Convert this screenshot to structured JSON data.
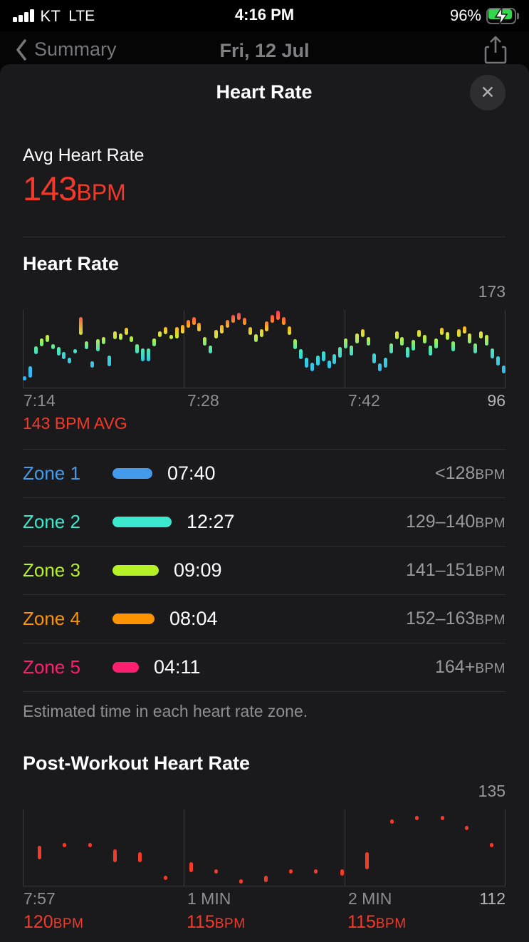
{
  "status_bar": {
    "carrier": "KT",
    "network": "LTE",
    "time": "4:16 PM",
    "battery_percent": "96%"
  },
  "background_page": {
    "back_label": "Summary",
    "date_title": "Fri, 12 Jul"
  },
  "sheet": {
    "title": "Heart Rate",
    "close_label": "✕",
    "avg": {
      "label": "Avg Heart Rate",
      "value": "143",
      "unit": "BPM"
    }
  },
  "hr_section": {
    "heading": "Heart Rate",
    "avg_caption": "143 BPM AVG"
  },
  "zones": {
    "rows": [
      {
        "name": "Zone 1",
        "color": "#449BEC",
        "duration": "07:40",
        "range_value": "<128",
        "range_unit": "BPM"
      },
      {
        "name": "Zone 2",
        "color": "#3CE8CD",
        "duration": "12:27",
        "range_value": "129–140",
        "range_unit": "BPM"
      },
      {
        "name": "Zone 3",
        "color": "#B5F125",
        "duration": "09:09",
        "range_value": "141–151",
        "range_unit": "BPM"
      },
      {
        "name": "Zone 4",
        "color": "#FB9303",
        "duration": "08:04",
        "range_value": "152–163",
        "range_unit": "BPM"
      },
      {
        "name": "Zone 5",
        "color": "#FC1E6F",
        "duration": "04:11",
        "range_value": "164+",
        "range_unit": "BPM"
      }
    ],
    "caption": "Estimated time in each heart rate zone."
  },
  "post_section": {
    "heading": "Post-Workout Heart Rate"
  },
  "chart_data": [
    {
      "type": "bar",
      "title": "Heart Rate",
      "ylabel": "BPM",
      "ylim": [
        96,
        173
      ],
      "y_max_label": "173",
      "y_min_label": "96",
      "x_ticks": [
        "7:14",
        "7:28",
        "7:42"
      ],
      "avg_bpm": 143,
      "legend": "segments are [low,high] BPM per ~30s interval, colored by heart-rate zone",
      "gradient_stops": [
        [
          96,
          "#38A1F4"
        ],
        [
          122,
          "#36CBE8"
        ],
        [
          133,
          "#3BE8C4"
        ],
        [
          145,
          "#BFF034"
        ],
        [
          151,
          "#EDE23C"
        ],
        [
          158,
          "#FFA018"
        ],
        [
          166,
          "#FF5A3C"
        ],
        [
          173,
          "#FF2D6B"
        ]
      ],
      "segments": [
        [
          103,
          107
        ],
        [
          106,
          117
        ],
        [
          129,
          137
        ],
        [
          137,
          145
        ],
        [
          141,
          148
        ],
        [
          134,
          139
        ],
        [
          128,
          136
        ],
        [
          124,
          131
        ],
        [
          120,
          126
        ],
        [
          130,
          134
        ],
        [
          148,
          166
        ],
        [
          134,
          142
        ],
        [
          116,
          122
        ],
        [
          132,
          144
        ],
        [
          139,
          146
        ],
        [
          117,
          128
        ],
        [
          144,
          152
        ],
        [
          143,
          150
        ],
        [
          148,
          155
        ],
        [
          141,
          147
        ],
        [
          130,
          139
        ],
        [
          122,
          135
        ],
        [
          122,
          135
        ],
        [
          137,
          145
        ],
        [
          146,
          152
        ],
        [
          149,
          156
        ],
        [
          144,
          148
        ],
        [
          145,
          156
        ],
        [
          150,
          158
        ],
        [
          155,
          163
        ],
        [
          158,
          166
        ],
        [
          152,
          160
        ],
        [
          138,
          146
        ],
        [
          130,
          138
        ],
        [
          145,
          153
        ],
        [
          150,
          158
        ],
        [
          155,
          163
        ],
        [
          160,
          168
        ],
        [
          163,
          170
        ],
        [
          158,
          165
        ],
        [
          148,
          156
        ],
        [
          141,
          149
        ],
        [
          146,
          154
        ],
        [
          152,
          162
        ],
        [
          160,
          168
        ],
        [
          163,
          172
        ],
        [
          158,
          166
        ],
        [
          148,
          157
        ],
        [
          134,
          144
        ],
        [
          124,
          134
        ],
        [
          116,
          126
        ],
        [
          112,
          121
        ],
        [
          118,
          128
        ],
        [
          122,
          132
        ],
        [
          115,
          123
        ],
        [
          119,
          129
        ],
        [
          126,
          136
        ],
        [
          135,
          145
        ],
        [
          128,
          138
        ],
        [
          140,
          150
        ],
        [
          146,
          154
        ],
        [
          138,
          146
        ],
        [
          120,
          130
        ],
        [
          112,
          120
        ],
        [
          116,
          126
        ],
        [
          130,
          140
        ],
        [
          144,
          152
        ],
        [
          138,
          146
        ],
        [
          126,
          136
        ],
        [
          133,
          143
        ],
        [
          146,
          153
        ],
        [
          140,
          148
        ],
        [
          128,
          138
        ],
        [
          135,
          145
        ],
        [
          148,
          155
        ],
        [
          143,
          151
        ],
        [
          132,
          142
        ],
        [
          146,
          154
        ],
        [
          150,
          157
        ],
        [
          140,
          150
        ],
        [
          130,
          140
        ],
        [
          145,
          152
        ],
        [
          138,
          148
        ],
        [
          125,
          135
        ],
        [
          118,
          127
        ],
        [
          110,
          118
        ]
      ]
    },
    {
      "type": "scatter",
      "title": "Post-Workout Heart Rate",
      "ylabel": "BPM",
      "ylim": [
        112,
        135
      ],
      "y_max_label": "135",
      "y_min_label": "112",
      "x_ticks": [
        "7:57",
        "1 MIN",
        "2 MIN"
      ],
      "dot_color": "#F43A28",
      "bpm_labels": [
        {
          "value": "120",
          "unit": "BPM"
        },
        {
          "value": "115",
          "unit": "BPM"
        },
        {
          "value": "115",
          "unit": "BPM"
        }
      ],
      "points": [
        {
          "x": 0.031,
          "v": [
            120,
            124
          ]
        },
        {
          "x": 0.083,
          "v": [
            124,
            125
          ]
        },
        {
          "x": 0.137,
          "v": [
            124,
            125
          ]
        },
        {
          "x": 0.189,
          "v": [
            119,
            123
          ]
        },
        {
          "x": 0.24,
          "v": [
            119,
            122
          ]
        },
        {
          "x": 0.294,
          "v": [
            114,
            115
          ]
        },
        {
          "x": 0.348,
          "v": [
            116,
            119
          ]
        },
        {
          "x": 0.4,
          "v": [
            116,
            117
          ]
        },
        {
          "x": 0.451,
          "v": [
            113,
            114
          ]
        },
        {
          "x": 0.503,
          "v": [
            113,
            115
          ]
        },
        {
          "x": 0.556,
          "v": [
            116,
            117
          ]
        },
        {
          "x": 0.608,
          "v": [
            116,
            117
          ]
        },
        {
          "x": 0.662,
          "v": [
            115,
            117
          ]
        },
        {
          "x": 0.714,
          "v": [
            117,
            122
          ]
        },
        {
          "x": 0.767,
          "v": [
            131,
            132
          ]
        },
        {
          "x": 0.819,
          "v": [
            132,
            133
          ]
        },
        {
          "x": 0.872,
          "v": [
            132,
            133
          ]
        },
        {
          "x": 0.923,
          "v": [
            129,
            130
          ]
        },
        {
          "x": 0.975,
          "v": [
            124,
            125
          ]
        }
      ]
    }
  ],
  "colors": {
    "accent_red": "#F23A2B",
    "sheet_bg": "#1A1A1C",
    "page_bg": "#000000",
    "battery_green": "#32D74B"
  }
}
